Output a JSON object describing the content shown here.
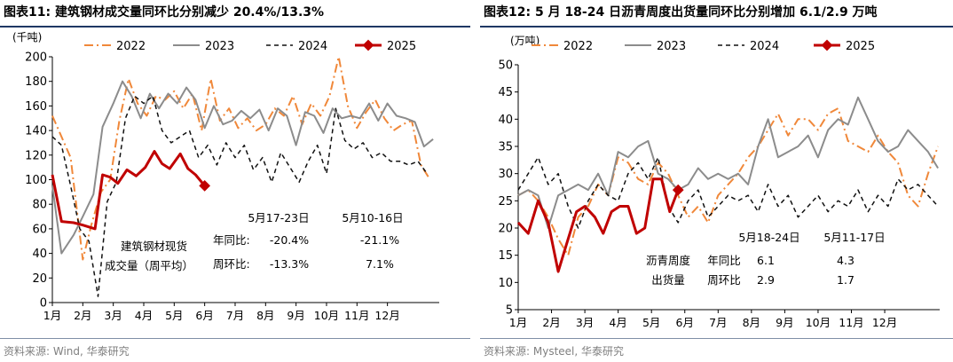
{
  "left": {
    "title": "图表11:  建筑钢材成交量同环比分别减少 20.4%/13.3%",
    "source": "资料来源: Wind, 华泰研究",
    "chart_data": {
      "type": "line",
      "ylabel": "(千吨)",
      "ylim": [
        0,
        200
      ],
      "yticks": [
        "0",
        "20",
        "40",
        "60",
        "80",
        "100",
        "120",
        "140",
        "160",
        "180",
        "200"
      ],
      "xlim": [
        1,
        13.7
      ],
      "xticks": [
        {
          "pos": 1,
          "label": "1月"
        },
        {
          "pos": 2,
          "label": "2月"
        },
        {
          "pos": 3,
          "label": "3月"
        },
        {
          "pos": 4,
          "label": "4月"
        },
        {
          "pos": 5,
          "label": "5月"
        },
        {
          "pos": 6,
          "label": "6月"
        },
        {
          "pos": 7,
          "label": "7月"
        },
        {
          "pos": 8,
          "label": "8月"
        },
        {
          "pos": 9,
          "label": "9月"
        },
        {
          "pos": 10,
          "label": "10月"
        },
        {
          "pos": 11,
          "label": "11月"
        },
        {
          "pos": 12,
          "label": "12月"
        }
      ],
      "legend": [
        "2022",
        "2023",
        "2024",
        "2025"
      ],
      "series": [
        {
          "name": "2022",
          "color": "#f0883a",
          "dash": "10,4,2,4",
          "width": 2,
          "x": [
            1,
            1.6,
            2.0,
            2.3,
            2.6,
            2.9,
            3.2,
            3.5,
            3.8,
            4.1,
            4.4,
            4.7,
            5.0,
            5.3,
            5.6,
            5.9,
            6.2,
            6.5,
            6.8,
            7.1,
            7.4,
            7.7,
            8.0,
            8.3,
            8.6,
            8.9,
            9.2,
            9.5,
            9.8,
            10.1,
            10.4,
            10.7,
            11.0,
            11.3,
            11.6,
            11.9,
            12.2,
            12.5,
            12.8,
            13.1,
            13.4
          ],
          "y": [
            152,
            118,
            35,
            65,
            90,
            100,
            148,
            182,
            162,
            152,
            168,
            165,
            172,
            158,
            170,
            140,
            182,
            148,
            158,
            142,
            150,
            140,
            145,
            158,
            152,
            168,
            145,
            162,
            152,
            168,
            200,
            160,
            142,
            155,
            165,
            150,
            140,
            145,
            148,
            112,
            100
          ]
        },
        {
          "name": "2023",
          "color": "#8c8c8c",
          "dash": "",
          "width": 2,
          "x": [
            1,
            1.3,
            1.7,
            2.0,
            2.35,
            2.65,
            3.0,
            3.3,
            3.6,
            3.9,
            4.2,
            4.5,
            4.8,
            5.1,
            5.4,
            5.7,
            6.0,
            6.3,
            6.6,
            6.9,
            7.2,
            7.5,
            7.8,
            8.1,
            8.4,
            8.7,
            9.0,
            9.3,
            9.6,
            9.9,
            10.2,
            10.5,
            10.8,
            11.1,
            11.4,
            11.7,
            12.0,
            12.3,
            12.6,
            12.9,
            13.2,
            13.5
          ],
          "y": [
            95,
            40,
            55,
            70,
            88,
            143,
            162,
            180,
            168,
            150,
            170,
            158,
            170,
            162,
            175,
            165,
            142,
            160,
            145,
            148,
            156,
            150,
            157,
            140,
            158,
            152,
            128,
            155,
            152,
            138,
            158,
            150,
            152,
            150,
            162,
            148,
            162,
            152,
            150,
            147,
            127,
            133
          ]
        },
        {
          "name": "2024",
          "color": "#111111",
          "dash": "5,4",
          "width": 1.5,
          "x": [
            1,
            1.3,
            1.6,
            1.9,
            2.2,
            2.5,
            2.8,
            3.1,
            3.4,
            3.7,
            4.0,
            4.3,
            4.6,
            4.9,
            5.2,
            5.5,
            5.8,
            6.1,
            6.4,
            6.7,
            7.0,
            7.3,
            7.6,
            7.9,
            8.2,
            8.5,
            8.8,
            9.1,
            9.4,
            9.7,
            10.0,
            10.3,
            10.6,
            10.9,
            11.2,
            11.5,
            11.8,
            12.1,
            12.4,
            12.7,
            13.0,
            13.3
          ],
          "y": [
            135,
            128,
            95,
            60,
            50,
            5,
            82,
            98,
            150,
            168,
            162,
            168,
            140,
            130,
            135,
            140,
            118,
            128,
            112,
            130,
            118,
            128,
            108,
            118,
            98,
            122,
            110,
            98,
            115,
            128,
            105,
            158,
            132,
            125,
            130,
            118,
            122,
            115,
            115,
            112,
            115,
            105
          ]
        },
        {
          "name": "2025",
          "color": "#c00000",
          "dash": "",
          "width": 3,
          "marker_last": true,
          "x": [
            1,
            1.3,
            1.7,
            2.0,
            2.4,
            2.65,
            2.9,
            3.15,
            3.45,
            3.75,
            4.05,
            4.35,
            4.6,
            4.85,
            5.2,
            5.45,
            5.7,
            6.0
          ],
          "y": [
            104,
            66,
            65,
            63,
            60,
            104,
            102,
            97,
            108,
            103,
            110,
            123,
            113,
            109,
            121,
            109,
            104,
            95
          ]
        }
      ],
      "table_left": {
        "headers": [
          "5月17-23日",
          "5月10-16日"
        ],
        "rows": [
          {
            "label": "年同比:",
            "v1": "-20.4%",
            "v2": "-21.1%"
          },
          {
            "label": "周环比:",
            "v1": "-13.3%",
            "v2": "7.1%"
          }
        ],
        "side_label_1": "建筑钢材现货",
        "side_label_2": "成交量（周平均）"
      }
    }
  },
  "right": {
    "title": "图表12:  5 月 18-24 日沥青周度出货量同环比分别增加 6.1/2.9 万吨",
    "source": "资料来源: Mysteel, 华泰研究",
    "chart_data": {
      "type": "line",
      "ylabel": "(万吨)",
      "ylim": [
        5,
        50
      ],
      "yticks": [
        "5",
        "10",
        "15",
        "20",
        "25",
        "30",
        "35",
        "40",
        "45",
        "50"
      ],
      "xlim": [
        1,
        13.65
      ],
      "xticks": [
        {
          "pos": 1,
          "label": "1月"
        },
        {
          "pos": 2,
          "label": "2月"
        },
        {
          "pos": 3,
          "label": "3月"
        },
        {
          "pos": 4,
          "label": "4月"
        },
        {
          "pos": 5,
          "label": "5月"
        },
        {
          "pos": 6,
          "label": "6月"
        },
        {
          "pos": 7,
          "label": "7月"
        },
        {
          "pos": 8,
          "label": "8月"
        },
        {
          "pos": 9,
          "label": "9月"
        },
        {
          "pos": 10,
          "label": "10月"
        },
        {
          "pos": 11,
          "label": "11月"
        },
        {
          "pos": 12,
          "label": "12月"
        }
      ],
      "legend": [
        "2022",
        "2023",
        "2024",
        "2025"
      ],
      "series": [
        {
          "name": "2022",
          "color": "#f0883a",
          "dash": "10,4,2,4",
          "width": 2,
          "x": [
            1,
            1.3,
            1.6,
            1.9,
            2.2,
            2.5,
            2.8,
            3.1,
            3.4,
            3.7,
            4.0,
            4.3,
            4.6,
            4.9,
            5.2,
            5.5,
            5.8,
            6.1,
            6.4,
            6.7,
            7.0,
            7.3,
            7.6,
            7.9,
            8.2,
            8.5,
            8.8,
            9.1,
            9.4,
            9.7,
            10.0,
            10.3,
            10.6,
            10.9,
            11.2,
            11.5,
            11.8,
            12.1,
            12.4,
            12.7,
            13.0,
            13.3,
            13.6
          ],
          "y": [
            26,
            27,
            25,
            22,
            18,
            15,
            22,
            24,
            28,
            26,
            33,
            32,
            29,
            28,
            32,
            30,
            26,
            22,
            24,
            21,
            26,
            28,
            30,
            33,
            35,
            38,
            41,
            37,
            40,
            40,
            38,
            41,
            42,
            36,
            35,
            34,
            37,
            34,
            32,
            26,
            24,
            30,
            35
          ]
        },
        {
          "name": "2023",
          "color": "#8c8c8c",
          "dash": "",
          "width": 2,
          "x": [
            1,
            1.3,
            1.6,
            1.9,
            2.2,
            2.5,
            2.8,
            3.1,
            3.4,
            3.7,
            4.0,
            4.3,
            4.6,
            4.9,
            5.2,
            5.5,
            5.8,
            6.1,
            6.4,
            6.7,
            7.0,
            7.3,
            7.6,
            7.9,
            8.2,
            8.5,
            8.8,
            9.1,
            9.4,
            9.7,
            10.0,
            10.3,
            10.6,
            10.9,
            11.2,
            11.5,
            11.8,
            12.1,
            12.4,
            12.7,
            13.0,
            13.3,
            13.6
          ],
          "y": [
            26,
            27,
            26,
            20,
            26,
            27,
            28,
            27,
            30,
            26,
            34,
            33,
            35,
            36,
            30,
            29,
            27,
            28,
            31,
            29,
            30,
            29,
            30,
            28,
            35,
            40,
            33,
            34,
            35,
            37,
            33,
            38,
            40,
            39,
            44,
            40,
            36,
            34,
            35,
            38,
            36,
            34,
            31
          ]
        },
        {
          "name": "2024",
          "color": "#111111",
          "dash": "5,4",
          "width": 1.5,
          "x": [
            1,
            1.3,
            1.6,
            1.9,
            2.2,
            2.5,
            2.8,
            3.1,
            3.4,
            3.7,
            4.0,
            4.3,
            4.6,
            4.9,
            5.2,
            5.5,
            5.8,
            6.1,
            6.4,
            6.7,
            7.0,
            7.3,
            7.6,
            7.9,
            8.2,
            8.5,
            8.8,
            9.1,
            9.4,
            9.7,
            10.0,
            10.3,
            10.6,
            10.9,
            11.2,
            11.5,
            11.8,
            12.1,
            12.4,
            12.7,
            13.0,
            13.3,
            13.6
          ],
          "y": [
            27,
            30,
            33,
            28,
            30,
            24,
            20,
            25,
            28,
            26,
            25,
            30,
            32,
            29,
            33,
            24,
            21,
            25,
            27,
            22,
            24,
            26,
            25,
            26,
            23,
            28,
            24,
            26,
            22,
            24,
            26,
            23,
            25,
            24,
            27,
            23,
            26,
            24,
            29,
            27,
            28,
            26,
            24
          ]
        },
        {
          "name": "2025",
          "color": "#c00000",
          "dash": "",
          "width": 3,
          "marker_last": true,
          "x": [
            1,
            1.3,
            1.6,
            1.9,
            2.2,
            2.45,
            2.75,
            3.0,
            3.3,
            3.55,
            3.8,
            4.05,
            4.3,
            4.55,
            4.8,
            5.05,
            5.3,
            5.55,
            5.8
          ],
          "y": [
            21,
            19,
            25,
            21,
            12,
            17,
            23,
            24,
            22,
            19,
            23,
            24,
            24,
            19,
            20,
            29,
            29,
            23,
            27
          ]
        }
      ],
      "table_right": {
        "headers": [
          "5月18-24日",
          "5月11-17日"
        ],
        "rows": [
          {
            "label": "沥青周度",
            "sub": "年同比",
            "v1": "6.1",
            "v2": "4.3"
          },
          {
            "label": "出货量",
            "sub": "周环比",
            "v1": "2.9",
            "v2": "1.7"
          }
        ]
      }
    }
  }
}
